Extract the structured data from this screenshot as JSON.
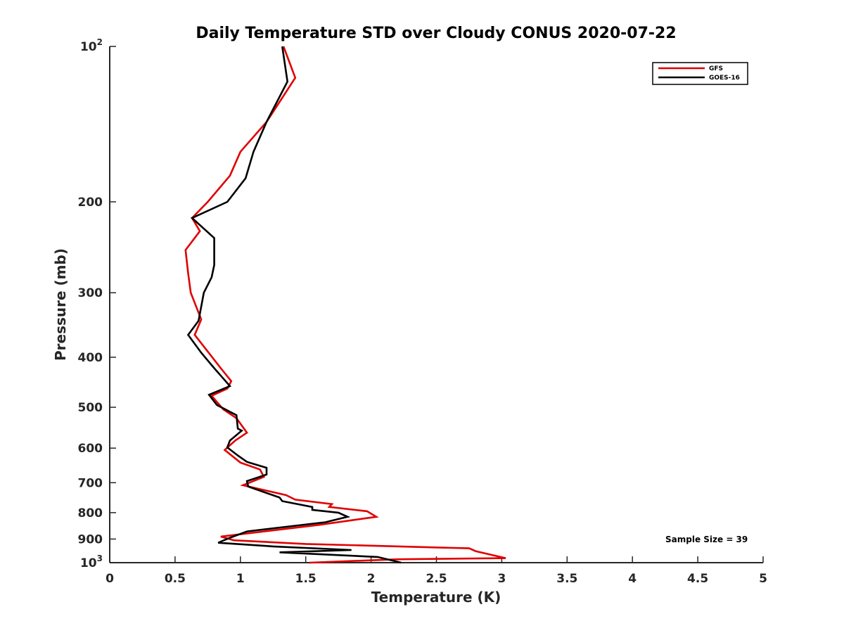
{
  "chart_data": {
    "type": "line",
    "title": "Daily Temperature STD over Cloudy CONUS 2020-07-22",
    "xlabel": "Temperature (K)",
    "ylabel": "Pressure (mb)",
    "xlim": [
      0,
      5
    ],
    "ylim": [
      100,
      1000
    ],
    "y_scale": "log",
    "y_inverted": true,
    "grid": false,
    "legend_position": "top-right",
    "x_ticks": [
      "0",
      "0.5",
      "1",
      "1.5",
      "2",
      "2.5",
      "3",
      "3.5",
      "4",
      "4.5",
      "5"
    ],
    "x_tick_values": [
      0,
      0.5,
      1,
      1.5,
      2,
      2.5,
      3,
      3.5,
      4,
      4.5,
      5
    ],
    "y_ticks": [
      {
        "value": 100,
        "base": "10",
        "exp": "2"
      },
      {
        "value": 200,
        "label": "200"
      },
      {
        "value": 300,
        "label": "300"
      },
      {
        "value": 400,
        "label": "400"
      },
      {
        "value": 500,
        "label": "500"
      },
      {
        "value": 600,
        "label": "600"
      },
      {
        "value": 700,
        "label": "700"
      },
      {
        "value": 800,
        "label": "800"
      },
      {
        "value": 900,
        "label": "900"
      },
      {
        "value": 1000,
        "base": "10",
        "exp": "3"
      }
    ],
    "annotation": "Sample Size = 39",
    "series": [
      {
        "name": "GFS",
        "color": "#e00000",
        "points": [
          [
            1.33,
            100
          ],
          [
            1.42,
            115
          ],
          [
            1.2,
            140
          ],
          [
            1.0,
            160
          ],
          [
            0.92,
            178
          ],
          [
            0.75,
            200
          ],
          [
            0.63,
            215
          ],
          [
            0.69,
            228
          ],
          [
            0.58,
            248
          ],
          [
            0.6,
            275
          ],
          [
            0.62,
            300
          ],
          [
            0.7,
            338
          ],
          [
            0.65,
            362
          ],
          [
            0.75,
            390
          ],
          [
            0.85,
            420
          ],
          [
            0.93,
            445
          ],
          [
            0.9,
            460
          ],
          [
            0.78,
            475
          ],
          [
            0.87,
            505
          ],
          [
            0.97,
            525
          ],
          [
            1.05,
            560
          ],
          [
            0.96,
            580
          ],
          [
            0.88,
            605
          ],
          [
            1.0,
            640
          ],
          [
            1.15,
            660
          ],
          [
            1.18,
            682
          ],
          [
            1.02,
            708
          ],
          [
            1.35,
            740
          ],
          [
            1.42,
            755
          ],
          [
            1.7,
            770
          ],
          [
            1.68,
            780
          ],
          [
            1.97,
            795
          ],
          [
            2.04,
            815
          ],
          [
            1.6,
            845
          ],
          [
            0.85,
            890
          ],
          [
            0.95,
            905
          ],
          [
            1.5,
            920
          ],
          [
            2.75,
            938
          ],
          [
            2.8,
            950
          ],
          [
            3.03,
            980
          ],
          [
            2.2,
            985
          ],
          [
            1.53,
            1000
          ]
        ]
      },
      {
        "name": "GOES-16",
        "color": "#000000",
        "points": [
          [
            1.32,
            100
          ],
          [
            1.36,
            117
          ],
          [
            1.2,
            140
          ],
          [
            1.1,
            160
          ],
          [
            1.04,
            180
          ],
          [
            0.9,
            200
          ],
          [
            0.63,
            215
          ],
          [
            0.8,
            235
          ],
          [
            0.8,
            265
          ],
          [
            0.78,
            280
          ],
          [
            0.72,
            300
          ],
          [
            0.68,
            340
          ],
          [
            0.6,
            362
          ],
          [
            0.7,
            392
          ],
          [
            0.8,
            420
          ],
          [
            0.87,
            440
          ],
          [
            0.92,
            455
          ],
          [
            0.76,
            473
          ],
          [
            0.82,
            495
          ],
          [
            0.97,
            518
          ],
          [
            0.98,
            550
          ],
          [
            1.01,
            555
          ],
          [
            0.92,
            580
          ],
          [
            0.9,
            598
          ],
          [
            0.98,
            620
          ],
          [
            1.05,
            638
          ],
          [
            1.2,
            655
          ],
          [
            1.2,
            675
          ],
          [
            1.05,
            695
          ],
          [
            1.06,
            712
          ],
          [
            1.3,
            748
          ],
          [
            1.32,
            760
          ],
          [
            1.55,
            780
          ],
          [
            1.55,
            790
          ],
          [
            1.75,
            800
          ],
          [
            1.82,
            815
          ],
          [
            1.65,
            835
          ],
          [
            1.05,
            870
          ],
          [
            0.92,
            895
          ],
          [
            0.83,
            915
          ],
          [
            1.25,
            930
          ],
          [
            1.85,
            945
          ],
          [
            1.3,
            955
          ],
          [
            2.05,
            975
          ],
          [
            2.23,
            1000
          ]
        ]
      }
    ]
  }
}
